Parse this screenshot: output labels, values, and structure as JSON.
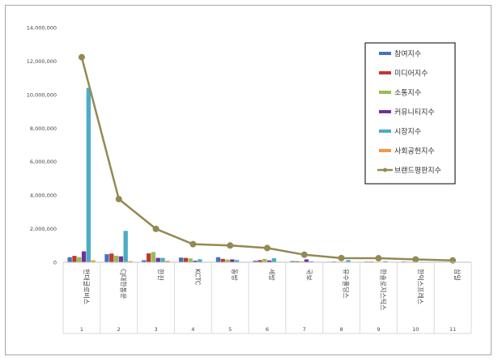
{
  "chart_data": {
    "type": "bar",
    "categories": [
      "현대글로비스",
      "CJ대한통운",
      "한진",
      "KCTC",
      "동방",
      "세방",
      "국보",
      "유수홀딩스",
      "한솔로지스틱스",
      "한익스프레스",
      "삼일"
    ],
    "index_labels": [
      "1",
      "2",
      "3",
      "4",
      "5",
      "6",
      "7",
      "8",
      "9",
      "10",
      "11"
    ],
    "series": [
      {
        "name": "참여지수",
        "color": "#4472c4",
        "values": [
          300000,
          480000,
          120000,
          280000,
          300000,
          90000,
          70000,
          30000,
          40000,
          40000,
          20000
        ]
      },
      {
        "name": "미디어지수",
        "color": "#c0392b",
        "values": [
          380000,
          520000,
          530000,
          260000,
          200000,
          130000,
          60000,
          40000,
          40000,
          30000,
          20000
        ]
      },
      {
        "name": "소통지수",
        "color": "#9bbb59",
        "values": [
          310000,
          390000,
          610000,
          230000,
          160000,
          200000,
          50000,
          30000,
          30000,
          30000,
          20000
        ]
      },
      {
        "name": "커뮤니티지수",
        "color": "#7030a0",
        "values": [
          650000,
          350000,
          260000,
          90000,
          170000,
          110000,
          170000,
          30000,
          20000,
          20000,
          20000
        ]
      },
      {
        "name": "시장지수",
        "color": "#4bacc6",
        "values": [
          10400000,
          1870000,
          260000,
          180000,
          130000,
          240000,
          60000,
          130000,
          60000,
          30000,
          20000
        ]
      },
      {
        "name": "사회공헌지수",
        "color": "#f79646",
        "values": [
          120000,
          70000,
          90000,
          20000,
          20000,
          30000,
          10000,
          10000,
          10000,
          10000,
          10000
        ]
      }
    ],
    "line_series": {
      "name": "브랜드평판지수",
      "color": "#938953",
      "values": [
        12230000,
        3770000,
        1990000,
        1080000,
        1000000,
        850000,
        450000,
        250000,
        240000,
        170000,
        110000
      ]
    },
    "y_ticks": [
      "0",
      "2,000,000",
      "4,000,000",
      "6,000,000",
      "8,000,000",
      "10,000,000",
      "12,000,000",
      "14,000,000"
    ],
    "ylim": [
      0,
      14000000
    ],
    "legend_position": "top-right"
  }
}
